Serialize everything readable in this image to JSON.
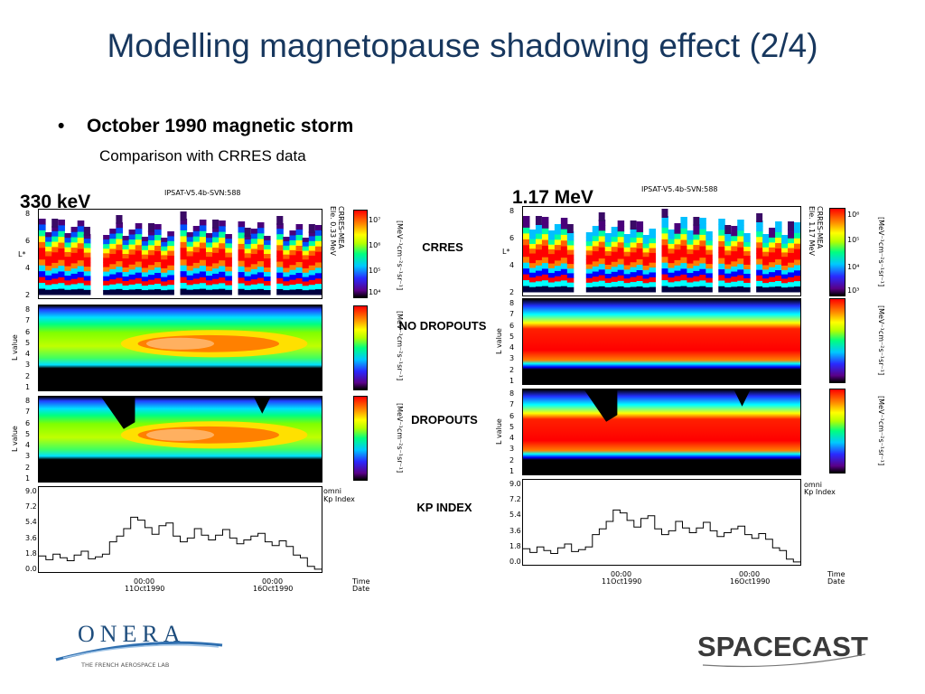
{
  "slide": {
    "title": "Modelling magnetopause shadowing effect (2/4)",
    "bullet": "October 1990 magnetic storm",
    "subtitle": "Comparison with CRRES data"
  },
  "left": {
    "energy": "330 keV",
    "header": "IPSAT-V5.4b-SVN:588",
    "crres_label": "CRRES-MEA",
    "crres_energy": "Ele. 0.33 MeV",
    "cbar_ticks": [
      "10⁷",
      "10⁶",
      "10⁵",
      "10⁴"
    ],
    "x_ticks": [
      {
        "time": "00:00",
        "date": "11Oct1990"
      },
      {
        "time": "00:00",
        "date": "16Oct1990"
      }
    ]
  },
  "right": {
    "energy": "1.17 MeV",
    "header": "IPSAT-V5.4b-SVN:588",
    "crres_label": "CRRES-MEA",
    "crres_energy": "Ele. 1.17 MeV",
    "cbar_ticks": [
      "10⁶",
      "10⁵",
      "10⁴",
      "10³"
    ],
    "x_ticks": [
      {
        "time": "00:00",
        "date": "11Oct1990"
      },
      {
        "time": "00:00",
        "date": "16Oct1990"
      }
    ]
  },
  "row_labels": {
    "crres": "CRRES",
    "no_dropouts": "NO DROPOUTS",
    "dropouts": "DROPOUTS",
    "kp": "KP INDEX"
  },
  "axes": {
    "lstar": "L*",
    "lvalue": "L value",
    "l_ticks_crres": [
      "8",
      "6",
      "4",
      "2"
    ],
    "l_ticks_model": [
      "8",
      "7",
      "6",
      "5",
      "4",
      "3",
      "2",
      "1"
    ],
    "kp_ticks": [
      "9.0",
      "7.2",
      "5.4",
      "3.6",
      "1.8",
      "0.0"
    ],
    "flux_unit": "[MeV⁻¹cm⁻²s⁻¹sr⁻¹]",
    "kp_source": "omni",
    "kp_name": "Kp Index",
    "time_label": "Time",
    "date_label": "Date"
  },
  "logos": {
    "onera_name": "ONERA",
    "onera_tagline": "THE FRENCH AEROSPACE LAB",
    "spacecast": "SPACECAST"
  },
  "chart_data": {
    "type": "line",
    "title": "",
    "xlabel": "",
    "ylabel": "Kp Index",
    "ylim": [
      0,
      9
    ],
    "series": [
      {
        "values": [
          1.7,
          1.3,
          1.9,
          1.5,
          1.2,
          1.8,
          2.2,
          1.4,
          1.6,
          1.9,
          3.2,
          3.8,
          4.6,
          5.8,
          5.5,
          4.7,
          4.0,
          4.9,
          5.2,
          3.8,
          3.2,
          3.6,
          4.6,
          3.9,
          3.4,
          3.9,
          4.5,
          3.6,
          3.0,
          3.4,
          3.8,
          4.1,
          3.2,
          2.8,
          3.3,
          2.7,
          1.8,
          1.5,
          0.6,
          0.3
        ]
      }
    ]
  }
}
